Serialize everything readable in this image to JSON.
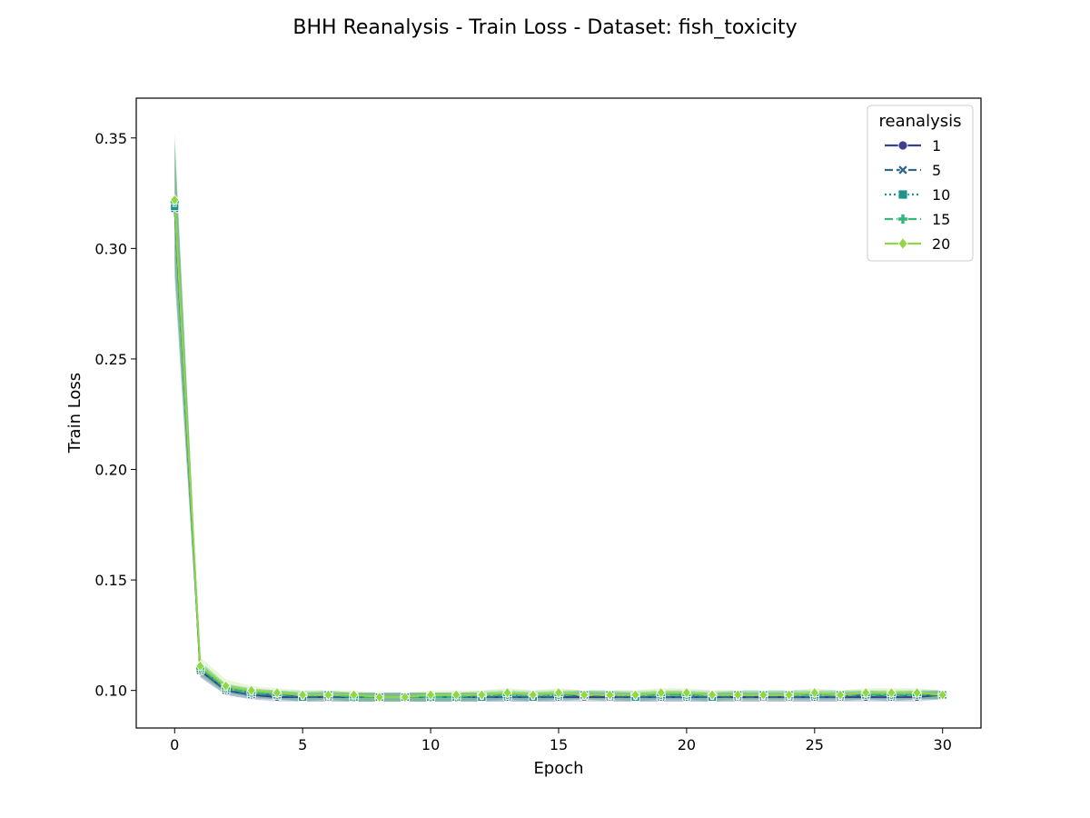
{
  "chart_data": {
    "type": "line",
    "title": "BHH Reanalysis - Train Loss - Dataset: fish_toxicity",
    "xlabel": "Epoch",
    "ylabel": "Train Loss",
    "xlim": [
      -1.5,
      31.5
    ],
    "ylim": [
      0.083,
      0.368
    ],
    "xticks": [
      0,
      5,
      10,
      15,
      20,
      25,
      30
    ],
    "yticks": [
      0.1,
      0.15,
      0.2,
      0.25,
      0.3,
      0.35
    ],
    "ytick_labels": [
      "0.10",
      "0.15",
      "0.20",
      "0.25",
      "0.30",
      "0.35"
    ],
    "grid": false,
    "legend": {
      "title": "reanalysis",
      "placement": "top-right"
    },
    "x": [
      0,
      1,
      2,
      3,
      4,
      5,
      6,
      7,
      8,
      9,
      10,
      11,
      12,
      13,
      14,
      15,
      16,
      17,
      18,
      19,
      20,
      21,
      22,
      23,
      24,
      25,
      26,
      27,
      28,
      29,
      30
    ],
    "series": [
      {
        "name": "1",
        "color": "#3b3f8c",
        "marker": "circle",
        "dash": "solid",
        "values": [
          0.32,
          0.109,
          0.1,
          0.098,
          0.097,
          0.097,
          0.097,
          0.097,
          0.097,
          0.097,
          0.097,
          0.097,
          0.097,
          0.097,
          0.097,
          0.097,
          0.097,
          0.097,
          0.097,
          0.097,
          0.097,
          0.097,
          0.097,
          0.097,
          0.097,
          0.097,
          0.097,
          0.097,
          0.097,
          0.097,
          0.098
        ],
        "band": [
          0.025,
          0.003,
          0.002,
          0.002,
          0.002,
          0.002,
          0.002,
          0.002,
          0.002,
          0.002,
          0.002,
          0.002,
          0.002,
          0.002,
          0.002,
          0.002,
          0.002,
          0.002,
          0.002,
          0.002,
          0.002,
          0.002,
          0.002,
          0.002,
          0.002,
          0.002,
          0.002,
          0.002,
          0.002,
          0.002,
          0.002
        ]
      },
      {
        "name": "5",
        "color": "#31688e",
        "marker": "x",
        "dash": "dashed",
        "values": [
          0.318,
          0.109,
          0.1,
          0.098,
          0.098,
          0.097,
          0.097,
          0.097,
          0.097,
          0.097,
          0.097,
          0.097,
          0.097,
          0.097,
          0.097,
          0.097,
          0.098,
          0.097,
          0.097,
          0.097,
          0.097,
          0.097,
          0.097,
          0.097,
          0.097,
          0.097,
          0.097,
          0.098,
          0.097,
          0.098,
          0.098
        ],
        "band": [
          0.03,
          0.003,
          0.002,
          0.002,
          0.002,
          0.002,
          0.002,
          0.002,
          0.002,
          0.002,
          0.002,
          0.002,
          0.002,
          0.002,
          0.002,
          0.002,
          0.002,
          0.002,
          0.002,
          0.002,
          0.002,
          0.002,
          0.002,
          0.002,
          0.002,
          0.002,
          0.002,
          0.002,
          0.002,
          0.002,
          0.002
        ]
      },
      {
        "name": "10",
        "color": "#21918c",
        "marker": "square",
        "dash": "dotted",
        "values": [
          0.319,
          0.11,
          0.101,
          0.099,
          0.098,
          0.097,
          0.098,
          0.097,
          0.097,
          0.097,
          0.097,
          0.097,
          0.097,
          0.098,
          0.097,
          0.098,
          0.098,
          0.098,
          0.097,
          0.098,
          0.098,
          0.097,
          0.098,
          0.098,
          0.098,
          0.098,
          0.098,
          0.098,
          0.098,
          0.098,
          0.098
        ],
        "band": [
          0.033,
          0.003,
          0.002,
          0.002,
          0.002,
          0.002,
          0.002,
          0.002,
          0.002,
          0.002,
          0.002,
          0.002,
          0.002,
          0.002,
          0.002,
          0.002,
          0.002,
          0.002,
          0.002,
          0.002,
          0.002,
          0.002,
          0.002,
          0.002,
          0.002,
          0.002,
          0.002,
          0.002,
          0.002,
          0.002,
          0.002
        ]
      },
      {
        "name": "15",
        "color": "#35b779",
        "marker": "plus",
        "dash": "dashed",
        "values": [
          0.321,
          0.11,
          0.101,
          0.099,
          0.098,
          0.098,
          0.098,
          0.097,
          0.097,
          0.097,
          0.097,
          0.097,
          0.098,
          0.098,
          0.098,
          0.098,
          0.098,
          0.098,
          0.098,
          0.098,
          0.098,
          0.098,
          0.098,
          0.098,
          0.098,
          0.098,
          0.098,
          0.098,
          0.098,
          0.098,
          0.098
        ],
        "band": [
          0.03,
          0.003,
          0.002,
          0.002,
          0.002,
          0.002,
          0.002,
          0.002,
          0.002,
          0.002,
          0.002,
          0.002,
          0.002,
          0.002,
          0.002,
          0.002,
          0.002,
          0.002,
          0.002,
          0.002,
          0.002,
          0.002,
          0.002,
          0.002,
          0.002,
          0.002,
          0.002,
          0.002,
          0.002,
          0.002,
          0.002
        ]
      },
      {
        "name": "20",
        "color": "#90d743",
        "marker": "diamond",
        "dash": "solid",
        "values": [
          0.322,
          0.111,
          0.102,
          0.1,
          0.099,
          0.098,
          0.098,
          0.098,
          0.097,
          0.097,
          0.098,
          0.098,
          0.098,
          0.099,
          0.098,
          0.099,
          0.098,
          0.098,
          0.098,
          0.099,
          0.099,
          0.098,
          0.098,
          0.098,
          0.098,
          0.099,
          0.098,
          0.099,
          0.099,
          0.099,
          0.098
        ],
        "band": [
          0.028,
          0.004,
          0.003,
          0.002,
          0.002,
          0.002,
          0.002,
          0.002,
          0.002,
          0.002,
          0.002,
          0.002,
          0.002,
          0.002,
          0.002,
          0.002,
          0.002,
          0.002,
          0.002,
          0.002,
          0.002,
          0.002,
          0.002,
          0.002,
          0.002,
          0.002,
          0.002,
          0.002,
          0.002,
          0.002,
          0.002
        ]
      }
    ]
  }
}
